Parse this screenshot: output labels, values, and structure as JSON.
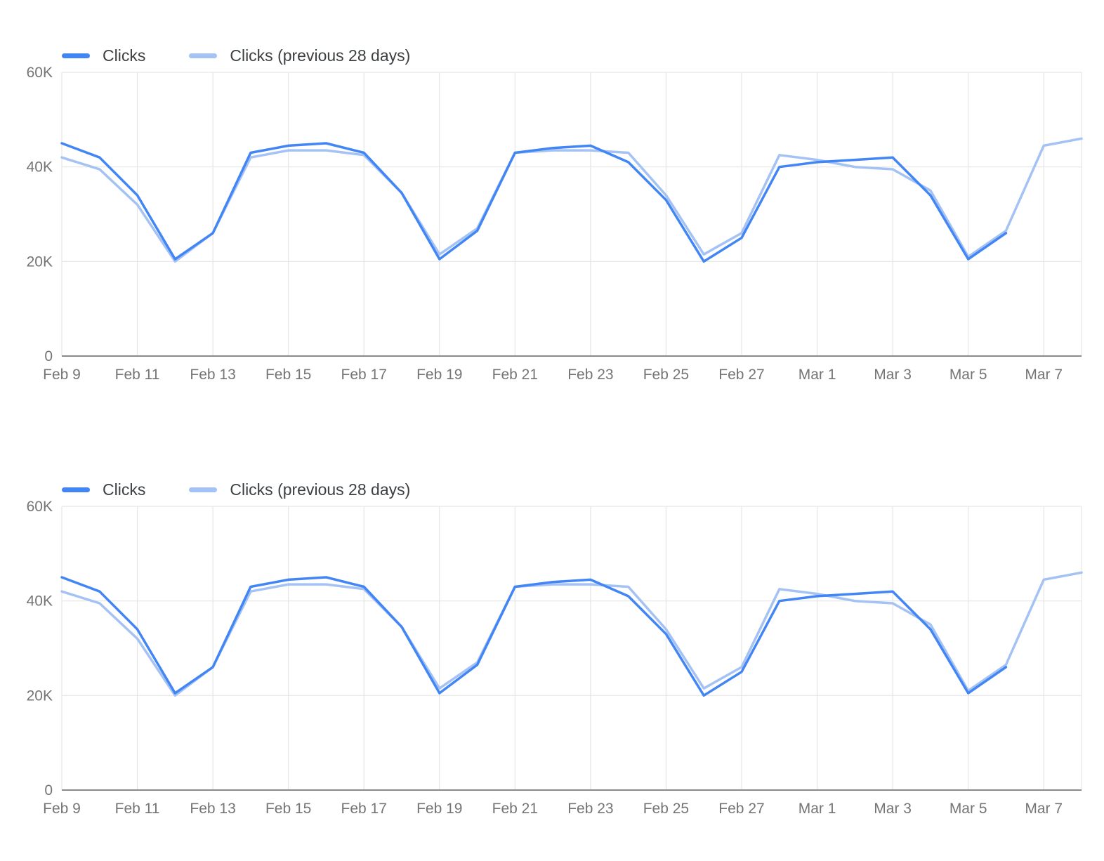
{
  "colors": {
    "clicks": "#4285f4",
    "clicks_prev": "#a4c2f4",
    "grid": "#e6e6e6",
    "axis_line": "#8a8a8a",
    "axis_text": "#757575",
    "legend_text": "#3c4043",
    "background": "#ffffff"
  },
  "chart_data": [
    {
      "type": "line",
      "title": "",
      "xlabel": "",
      "ylabel": "",
      "x": [
        "Feb 9",
        "Feb 10",
        "Feb 11",
        "Feb 12",
        "Feb 13",
        "Feb 14",
        "Feb 15",
        "Feb 16",
        "Feb 17",
        "Feb 18",
        "Feb 19",
        "Feb 20",
        "Feb 21",
        "Feb 22",
        "Feb 23",
        "Feb 24",
        "Feb 25",
        "Feb 26",
        "Feb 27",
        "Feb 28",
        "Mar 1",
        "Mar 2",
        "Mar 3",
        "Mar 4",
        "Mar 5",
        "Mar 6",
        "Mar 7",
        "Mar 8"
      ],
      "tick_labels": [
        "Feb 9",
        "Feb 11",
        "Feb 13",
        "Feb 15",
        "Feb 17",
        "Feb 19",
        "Feb 21",
        "Feb 23",
        "Feb 25",
        "Feb 27",
        "Mar 1",
        "Mar 3",
        "Mar 5",
        "Mar 7"
      ],
      "series": [
        {
          "name": "Clicks",
          "color": "#4285f4",
          "values": [
            45000,
            42000,
            34000,
            20500,
            26000,
            43000,
            44500,
            45000,
            43000,
            34500,
            20500,
            26500,
            43000,
            44000,
            44500,
            41000,
            33000,
            20000,
            25000,
            40000,
            41000,
            41500,
            42000,
            34000,
            20500,
            26000,
            null,
            null
          ]
        },
        {
          "name": "Clicks (previous 28 days)",
          "color": "#a4c2f4",
          "values": [
            42000,
            39500,
            32000,
            20000,
            26000,
            42000,
            43500,
            43500,
            42500,
            34500,
            21500,
            27000,
            43000,
            43500,
            43500,
            43000,
            34000,
            21500,
            26000,
            42500,
            41500,
            40000,
            39500,
            35000,
            21000,
            26500,
            44500,
            46000
          ]
        }
      ],
      "ylim": [
        0,
        60000
      ],
      "yticks": [
        0,
        20000,
        40000,
        60000
      ],
      "ytick_labels": [
        "0",
        "20K",
        "40K",
        "60K"
      ],
      "grid": true,
      "legend_position": "top-left"
    },
    {
      "type": "line",
      "title": "",
      "xlabel": "",
      "ylabel": "",
      "x": [
        "Feb 9",
        "Feb 10",
        "Feb 11",
        "Feb 12",
        "Feb 13",
        "Feb 14",
        "Feb 15",
        "Feb 16",
        "Feb 17",
        "Feb 18",
        "Feb 19",
        "Feb 20",
        "Feb 21",
        "Feb 22",
        "Feb 23",
        "Feb 24",
        "Feb 25",
        "Feb 26",
        "Feb 27",
        "Feb 28",
        "Mar 1",
        "Mar 2",
        "Mar 3",
        "Mar 4",
        "Mar 5",
        "Mar 6",
        "Mar 7",
        "Mar 8"
      ],
      "tick_labels": [
        "Feb 9",
        "Feb 11",
        "Feb 13",
        "Feb 15",
        "Feb 17",
        "Feb 19",
        "Feb 21",
        "Feb 23",
        "Feb 25",
        "Feb 27",
        "Mar 1",
        "Mar 3",
        "Mar 5",
        "Mar 7"
      ],
      "series": [
        {
          "name": "Clicks",
          "color": "#4285f4",
          "values": [
            45000,
            42000,
            34000,
            20500,
            26000,
            43000,
            44500,
            45000,
            43000,
            34500,
            20500,
            26500,
            43000,
            44000,
            44500,
            41000,
            33000,
            20000,
            25000,
            40000,
            41000,
            41500,
            42000,
            34000,
            20500,
            26000,
            null,
            null
          ]
        },
        {
          "name": "Clicks (previous 28 days)",
          "color": "#a4c2f4",
          "values": [
            42000,
            39500,
            32000,
            20000,
            26000,
            42000,
            43500,
            43500,
            42500,
            34500,
            21500,
            27000,
            43000,
            43500,
            43500,
            43000,
            34000,
            21500,
            26000,
            42500,
            41500,
            40000,
            39500,
            35000,
            21000,
            26500,
            44500,
            46000
          ]
        }
      ],
      "ylim": [
        0,
        60000
      ],
      "yticks": [
        0,
        20000,
        40000,
        60000
      ],
      "ytick_labels": [
        "0",
        "20K",
        "40K",
        "60K"
      ],
      "grid": true,
      "legend_position": "top-left"
    }
  ]
}
